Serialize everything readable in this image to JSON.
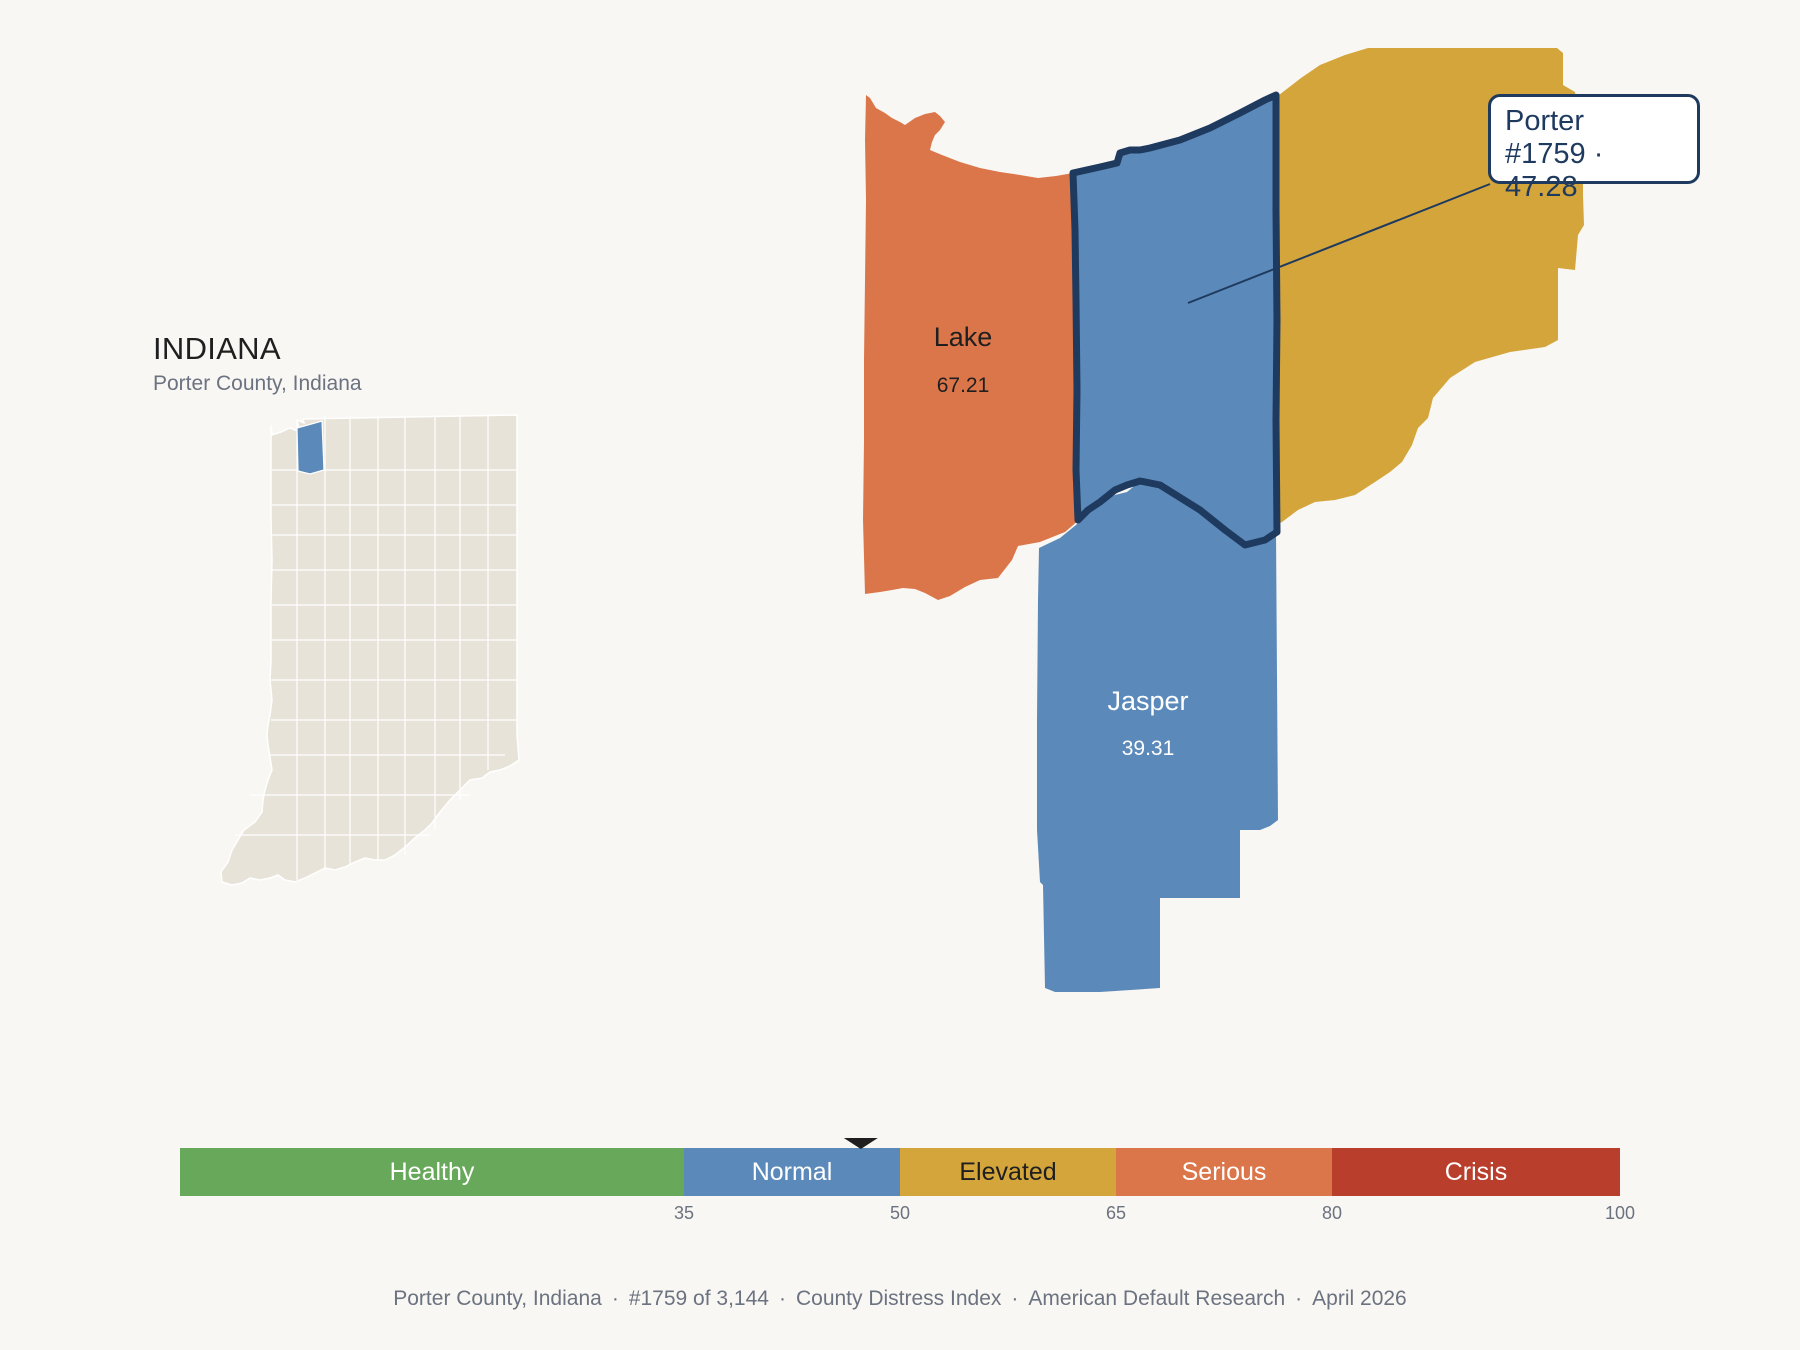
{
  "state": {
    "name": "INDIANA",
    "subtitle": "Porter County, Indiana"
  },
  "focus": {
    "name": "Porter",
    "callout": "#1759 · 47.28",
    "rank": "#1759",
    "score": 47.28,
    "category": "Normal"
  },
  "neighbors": [
    {
      "name": "Lake",
      "value": "67.21",
      "category": "Serious"
    },
    {
      "name": "Jasper",
      "value": "39.31",
      "category": "Normal"
    },
    {
      "name": "",
      "value": "",
      "category": "Elevated"
    }
  ],
  "colors": {
    "healthy": "#68a85a",
    "normal": "#5b8aba",
    "elevated": "#d4a53b",
    "serious": "#db764a",
    "crisis": "#b93e2b",
    "focus_outline": "#1f3a5f",
    "locator_fill": "#e8e3d8",
    "locator_highlight": "#5b8aba"
  },
  "scale": {
    "min": 0,
    "max": 100,
    "marker_value": 47.28,
    "bands": [
      {
        "label": "Healthy",
        "from": 0,
        "to": 35,
        "color": "#68a85a"
      },
      {
        "label": "Normal",
        "from": 35,
        "to": 50,
        "color": "#5b8aba"
      },
      {
        "label": "Elevated",
        "from": 50,
        "to": 65,
        "color": "#d4a53b"
      },
      {
        "label": "Serious",
        "from": 65,
        "to": 80,
        "color": "#db764a"
      },
      {
        "label": "Crisis",
        "from": 80,
        "to": 100,
        "color": "#b93e2b"
      }
    ],
    "ticks": [
      "35",
      "50",
      "65",
      "80",
      "100"
    ]
  },
  "footer": {
    "county": "Porter County, Indiana",
    "rank": "#1759 of 3,144",
    "index": "County Distress Index",
    "source": "American Default Research",
    "date": "April 2026"
  }
}
